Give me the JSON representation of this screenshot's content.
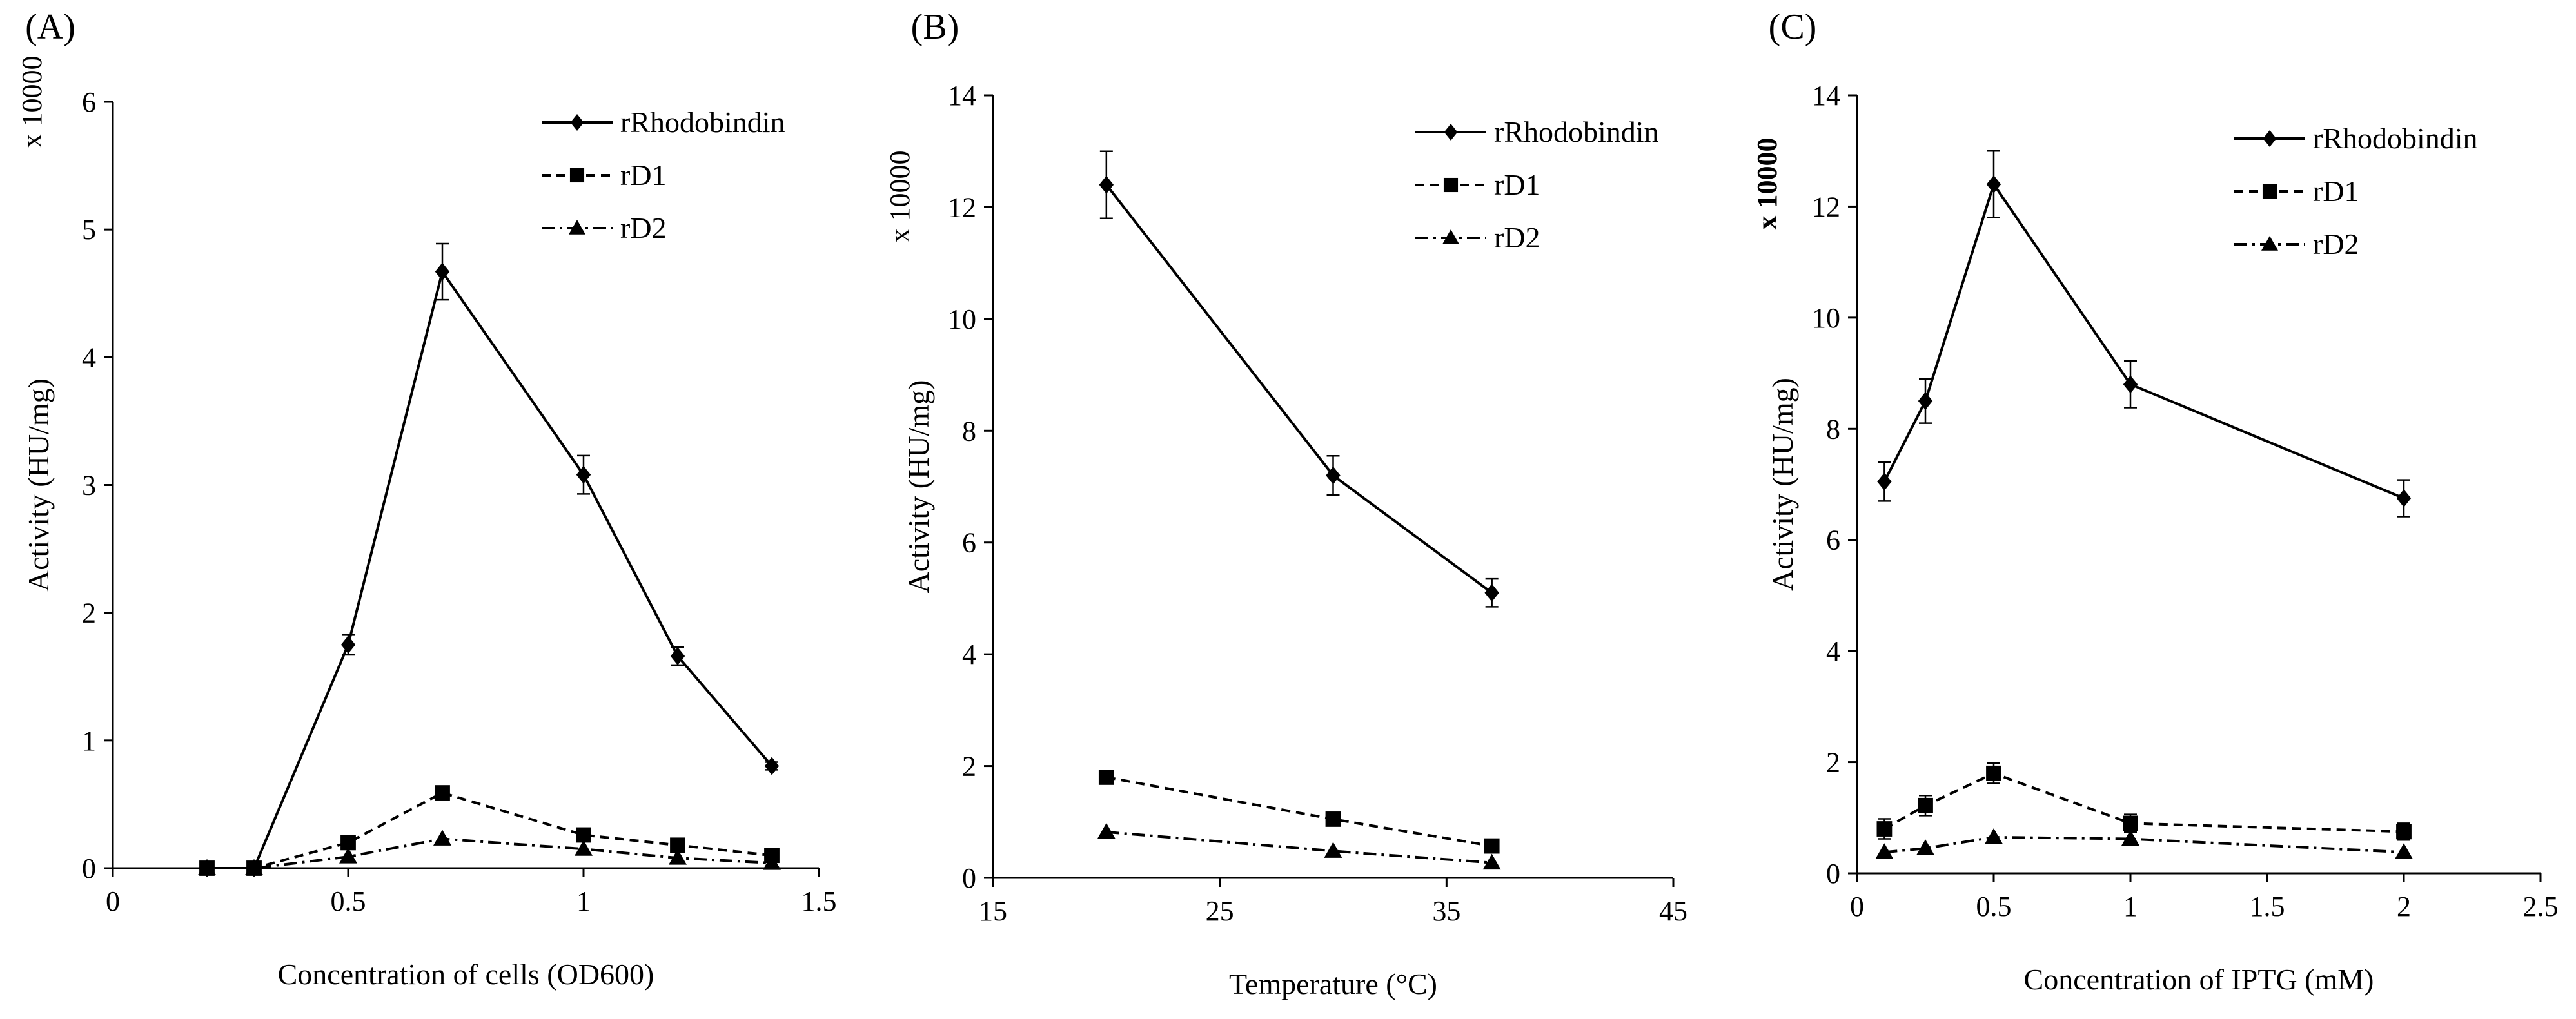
{
  "chart_data": [
    {
      "type": "line",
      "panel_label": "(A)",
      "multiplier_label": "x 10000",
      "xlabel": "Concentration of cells (OD600)",
      "ylabel": "Activity (HU/mg)",
      "xlim": [
        0,
        1.5
      ],
      "ylim": [
        0,
        6
      ],
      "xticks": [
        0,
        0.5,
        1,
        1.5
      ],
      "xtick_labels": [
        "0",
        "0.5",
        "1",
        "1.5"
      ],
      "yticks": [
        0,
        1,
        2,
        3,
        4,
        5,
        6
      ],
      "ytick_labels": [
        "0",
        "1",
        "2",
        "3",
        "4",
        "5",
        "6"
      ],
      "grid": false,
      "legend_position": "top-right",
      "series": [
        {
          "name": "rRhodobindin",
          "marker": "diamond",
          "dash": "solid",
          "x": [
            0.2,
            0.3,
            0.5,
            0.7,
            1.0,
            1.2,
            1.4
          ],
          "y": [
            0,
            0,
            1.75,
            4.67,
            3.08,
            1.66,
            0.8
          ],
          "err": [
            0,
            0,
            0.08,
            0.22,
            0.15,
            0.07,
            0.03
          ]
        },
        {
          "name": "rD1",
          "marker": "square",
          "dash": "dashed",
          "x": [
            0.2,
            0.3,
            0.5,
            0.7,
            1.0,
            1.2,
            1.4
          ],
          "y": [
            0,
            0,
            0.2,
            0.59,
            0.26,
            0.18,
            0.1
          ],
          "err": [
            0,
            0,
            0,
            0,
            0,
            0,
            0
          ]
        },
        {
          "name": "rD2",
          "marker": "triangle",
          "dash": "dashdot",
          "x": [
            0.2,
            0.3,
            0.5,
            0.7,
            1.0,
            1.2,
            1.4
          ],
          "y": [
            0,
            0,
            0.09,
            0.23,
            0.15,
            0.08,
            0.04
          ],
          "err": [
            0,
            0,
            0,
            0,
            0,
            0,
            0
          ]
        }
      ]
    },
    {
      "type": "line",
      "panel_label": "(B)",
      "multiplier_label": "x 10000",
      "xlabel": "Temperature (°C)",
      "ylabel": "Activity (HU/mg)",
      "xlim": [
        15,
        45
      ],
      "ylim": [
        0,
        14
      ],
      "xticks": [
        15,
        25,
        35,
        45
      ],
      "xtick_labels": [
        "15",
        "25",
        "35",
        "45"
      ],
      "yticks": [
        0,
        2,
        4,
        6,
        8,
        10,
        12,
        14
      ],
      "ytick_labels": [
        "0",
        "2",
        "4",
        "6",
        "8",
        "10",
        "12",
        "14"
      ],
      "grid": false,
      "legend_position": "top-right",
      "series": [
        {
          "name": "rRhodobindin",
          "marker": "diamond",
          "dash": "solid",
          "x": [
            20,
            30,
            37
          ],
          "y": [
            12.4,
            7.2,
            5.1
          ],
          "err": [
            0.6,
            0.35,
            0.25
          ]
        },
        {
          "name": "rD1",
          "marker": "square",
          "dash": "dashed",
          "x": [
            20,
            30,
            37
          ],
          "y": [
            1.8,
            1.05,
            0.57
          ],
          "err": [
            0,
            0,
            0
          ]
        },
        {
          "name": "rD2",
          "marker": "triangle",
          "dash": "dashdot",
          "x": [
            20,
            30,
            37
          ],
          "y": [
            0.82,
            0.48,
            0.27
          ],
          "err": [
            0,
            0,
            0
          ]
        }
      ]
    },
    {
      "type": "line",
      "panel_label": "(C)",
      "multiplier_label": "x 10000",
      "multiplier_bold": true,
      "xlabel": "Concentration of IPTG (mM)",
      "ylabel": "Activity (HU/mg)",
      "xlim": [
        0,
        2.5
      ],
      "ylim": [
        0,
        14
      ],
      "xticks": [
        0,
        0.5,
        1,
        1.5,
        2,
        2.5
      ],
      "xtick_labels": [
        "0",
        "0.5",
        "1",
        "1.5",
        "2",
        "2.5"
      ],
      "yticks": [
        0,
        2,
        4,
        6,
        8,
        10,
        12,
        14
      ],
      "ytick_labels": [
        "0",
        "2",
        "4",
        "6",
        "8",
        "10",
        "12",
        "14"
      ],
      "grid": false,
      "legend_position": "top-right",
      "series": [
        {
          "name": "rRhodobindin",
          "marker": "diamond",
          "dash": "solid",
          "x": [
            0.1,
            0.25,
            0.5,
            1.0,
            2.0
          ],
          "y": [
            7.05,
            8.5,
            12.4,
            8.8,
            6.75
          ],
          "err": [
            0.35,
            0.4,
            0.6,
            0.42,
            0.33
          ]
        },
        {
          "name": "rD1",
          "marker": "square",
          "dash": "dashed",
          "x": [
            0.1,
            0.25,
            0.5,
            1.0,
            2.0
          ],
          "y": [
            0.8,
            1.22,
            1.8,
            0.9,
            0.75
          ],
          "err": [
            0.18,
            0.18,
            0.18,
            0.16,
            0.15
          ]
        },
        {
          "name": "rD2",
          "marker": "triangle",
          "dash": "dashdot",
          "x": [
            0.1,
            0.25,
            0.5,
            1.0,
            2.0
          ],
          "y": [
            0.38,
            0.45,
            0.65,
            0.62,
            0.38
          ],
          "err": [
            0,
            0,
            0,
            0,
            0
          ]
        }
      ]
    }
  ]
}
